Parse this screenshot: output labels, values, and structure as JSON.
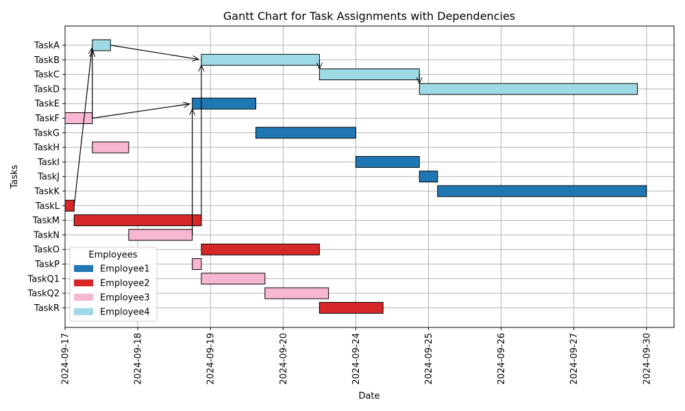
{
  "chart_data": {
    "type": "gantt",
    "title": "Gantt Chart for Task Assignments with Dependencies",
    "xlabel": "Date",
    "ylabel": "Tasks",
    "grid": true,
    "x_ticks": [
      "2024-09-17",
      "2024-09-18",
      "2024-09-19",
      "2024-09-20",
      "2024-09-24",
      "2024-09-25",
      "2024-09-26",
      "2024-09-27",
      "2024-09-30"
    ],
    "legend": {
      "title": "Employees",
      "position": "lower-left",
      "entries": [
        {
          "name": "Employee1",
          "color": "#1f77b4"
        },
        {
          "name": "Employee2",
          "color": "#d62728"
        },
        {
          "name": "Employee3",
          "color": "#f7b6d2"
        },
        {
          "name": "Employee4",
          "color": "#9edae5"
        }
      ]
    },
    "tasks": [
      {
        "name": "TaskA",
        "employee": "Employee4",
        "start": 0.375,
        "end": 0.625
      },
      {
        "name": "TaskB",
        "employee": "Employee4",
        "start": 1.875,
        "end": 3.5
      },
      {
        "name": "TaskC",
        "employee": "Employee4",
        "start": 3.5,
        "end": 4.875
      },
      {
        "name": "TaskD",
        "employee": "Employee4",
        "start": 4.875,
        "end": 7.875
      },
      {
        "name": "TaskE",
        "employee": "Employee1",
        "start": 1.75,
        "end": 2.625
      },
      {
        "name": "TaskF",
        "employee": "Employee3",
        "start": 0.0,
        "end": 0.375
      },
      {
        "name": "TaskG",
        "employee": "Employee1",
        "start": 2.625,
        "end": 4.0
      },
      {
        "name": "TaskH",
        "employee": "Employee3",
        "start": 0.375,
        "end": 0.875
      },
      {
        "name": "TaskI",
        "employee": "Employee1",
        "start": 4.0,
        "end": 4.875
      },
      {
        "name": "TaskJ",
        "employee": "Employee1",
        "start": 4.875,
        "end": 5.125
      },
      {
        "name": "TaskK",
        "employee": "Employee1",
        "start": 5.125,
        "end": 8.0
      },
      {
        "name": "TaskL",
        "employee": "Employee2",
        "start": 0.0,
        "end": 0.125
      },
      {
        "name": "TaskM",
        "employee": "Employee2",
        "start": 0.125,
        "end": 1.875
      },
      {
        "name": "TaskN",
        "employee": "Employee3",
        "start": 0.875,
        "end": 1.75
      },
      {
        "name": "TaskO",
        "employee": "Employee2",
        "start": 1.875,
        "end": 3.5
      },
      {
        "name": "TaskP",
        "employee": "Employee3",
        "start": 1.75,
        "end": 1.875
      },
      {
        "name": "TaskQ1",
        "employee": "Employee3",
        "start": 1.875,
        "end": 2.75
      },
      {
        "name": "TaskQ2",
        "employee": "Employee3",
        "start": 2.75,
        "end": 3.625
      },
      {
        "name": "TaskR",
        "employee": "Employee2",
        "start": 3.5,
        "end": 4.375
      }
    ],
    "dependencies": [
      {
        "from": "TaskL",
        "to": "TaskA"
      },
      {
        "from": "TaskF",
        "to": "TaskA"
      },
      {
        "from": "TaskA",
        "to": "TaskB"
      },
      {
        "from": "TaskM",
        "to": "TaskB"
      },
      {
        "from": "TaskF",
        "to": "TaskE"
      },
      {
        "from": "TaskN",
        "to": "TaskE"
      },
      {
        "from": "TaskB",
        "to": "TaskC"
      },
      {
        "from": "TaskC",
        "to": "TaskD"
      }
    ]
  }
}
